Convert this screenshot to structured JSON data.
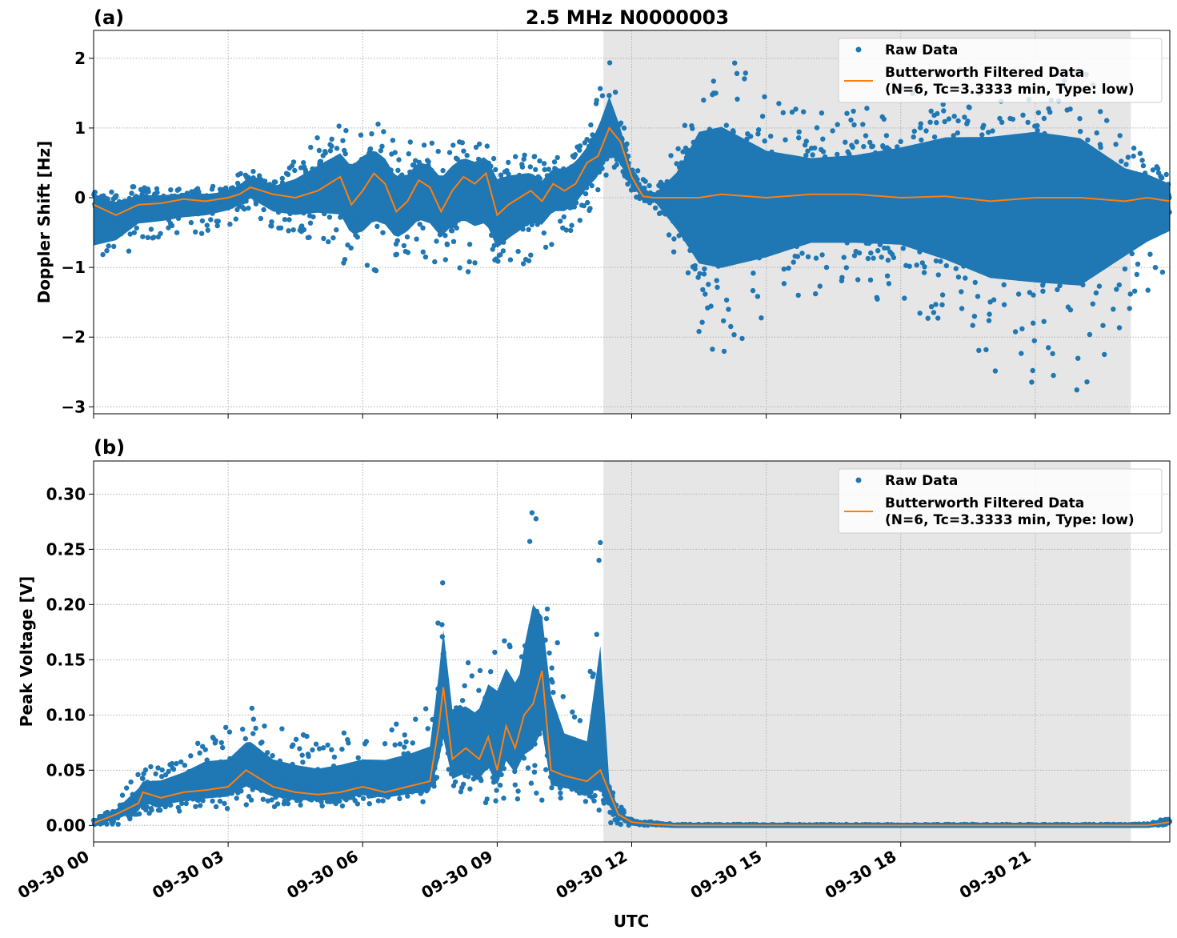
{
  "figure": {
    "title": "2.5 MHz N0000003",
    "xlabel": "UTC",
    "x_ticks": [
      "09-30 00",
      "09-30 03",
      "09-30 06",
      "09-30 09",
      "09-30 12",
      "09-30 15",
      "09-30 18",
      "09-30 21"
    ],
    "x_tick_hours": [
      0,
      3,
      6,
      9,
      12,
      15,
      18,
      21
    ],
    "x_range_hours": [
      0,
      24
    ],
    "shaded_interval_hours": [
      11.37,
      23.13
    ],
    "colors": {
      "raw": "#1f77b4",
      "filtered": "#ff7f0e",
      "shade": "#e6e6e6",
      "grid": "#b0b0b0"
    },
    "legend": {
      "raw_label": "Raw Data",
      "filtered_line1": "Butterworth Filtered Data",
      "filtered_line2": "(N=6, Tc=3.3333 min, Type: low)"
    }
  },
  "panels": {
    "a": {
      "label": "(a)",
      "ylabel": "Doppler Shift [Hz]",
      "ylim": [
        -3.1,
        2.4
      ],
      "y_ticks": [
        2,
        1,
        0,
        -1,
        -2,
        -3
      ],
      "y_tick_labels": [
        "2",
        "1",
        "0",
        "−1",
        "−2",
        "−3"
      ]
    },
    "b": {
      "label": "(b)",
      "ylabel": "Peak Voltage [V]",
      "ylim": [
        -0.015,
        0.33
      ],
      "y_ticks": [
        0.0,
        0.05,
        0.1,
        0.15,
        0.2,
        0.25,
        0.3
      ],
      "y_tick_labels": [
        "0.00",
        "0.05",
        "0.10",
        "0.15",
        "0.20",
        "0.25",
        "0.30"
      ]
    }
  },
  "chart_data": [
    {
      "type": "scatter",
      "panel": "a",
      "title": "2.5 MHz N0000003",
      "ylabel": "Doppler Shift [Hz]",
      "xlabel": "UTC",
      "ylim": [
        -3.1,
        2.4
      ],
      "grid": true,
      "legend_position": "top-right",
      "series": [
        {
          "name": "Butterworth Filtered Data",
          "type": "line",
          "x": [
            0,
            0.5,
            1,
            1.5,
            2,
            2.5,
            3,
            3.25,
            3.5,
            4,
            4.5,
            5,
            5.25,
            5.5,
            5.75,
            6,
            6.25,
            6.5,
            6.75,
            7,
            7.25,
            7.5,
            7.75,
            8,
            8.25,
            8.5,
            8.75,
            9,
            9.25,
            9.5,
            9.75,
            10,
            10.25,
            10.5,
            10.75,
            11,
            11.25,
            11.5,
            11.75,
            12,
            12.25,
            12.5,
            13,
            13.5,
            14,
            15,
            16,
            17,
            18,
            19,
            20,
            21,
            22,
            23,
            23.5,
            24
          ],
          "y": [
            -0.1,
            -0.25,
            -0.1,
            -0.08,
            -0.02,
            -0.05,
            0.0,
            0.05,
            0.15,
            0.05,
            0.0,
            0.1,
            0.2,
            0.3,
            -0.1,
            0.1,
            0.35,
            0.2,
            -0.2,
            -0.05,
            0.25,
            0.15,
            -0.2,
            0.1,
            0.3,
            0.2,
            0.35,
            -0.25,
            -0.1,
            0.0,
            0.1,
            -0.05,
            0.2,
            0.1,
            0.2,
            0.5,
            0.6,
            1.0,
            0.8,
            0.3,
            0.02,
            0.0,
            0.0,
            0.0,
            0.05,
            0.0,
            0.05,
            0.05,
            0.0,
            0.02,
            -0.05,
            0.0,
            0.0,
            -0.05,
            0.0,
            -0.05
          ]
        },
        {
          "name": "Raw Data",
          "type": "scatter",
          "envelope_x": [
            0,
            1,
            2,
            3,
            3.5,
            4,
            5,
            6,
            7,
            8,
            9,
            10,
            11,
            11.5,
            12,
            12.5,
            13,
            13.5,
            14,
            15,
            16,
            17,
            18,
            19,
            20,
            21,
            22,
            23,
            24
          ],
          "envelope_upper": [
            0.15,
            0.2,
            0.15,
            0.2,
            0.5,
            0.3,
            0.9,
            1.2,
            0.8,
            0.9,
            0.9,
            0.6,
            1.0,
            2.0,
            0.5,
            0.1,
            0.8,
            2.1,
            2.2,
            1.5,
            1.2,
            1.3,
            1.6,
            1.9,
            2.0,
            2.1,
            1.9,
            1.0,
            0.5
          ],
          "envelope_lower": [
            -1.4,
            -0.7,
            -0.6,
            -0.4,
            -0.2,
            -0.5,
            -0.6,
            -1.2,
            -1.0,
            -1.0,
            -1.3,
            -0.8,
            -0.3,
            0.2,
            0.0,
            -0.1,
            -1.0,
            -2.1,
            -2.3,
            -1.9,
            -1.5,
            -1.5,
            -1.5,
            -2.0,
            -2.5,
            -2.7,
            -2.8,
            -1.8,
            -1.0
          ]
        }
      ]
    },
    {
      "type": "scatter",
      "panel": "b",
      "ylabel": "Peak Voltage [V]",
      "xlabel": "UTC",
      "ylim": [
        -0.015,
        0.33
      ],
      "grid": true,
      "legend_position": "top-right",
      "series": [
        {
          "name": "Butterworth Filtered Data",
          "type": "line",
          "x": [
            0,
            0.5,
            1,
            1.1,
            1.5,
            2,
            2.5,
            3,
            3.4,
            4,
            4.5,
            5,
            5.5,
            6,
            6.5,
            7,
            7.5,
            7.7,
            7.8,
            8,
            8.3,
            8.6,
            8.8,
            9.0,
            9.2,
            9.4,
            9.6,
            9.8,
            10.0,
            10.2,
            10.5,
            11.0,
            11.3,
            11.5,
            11.7,
            12,
            12.5,
            13,
            15,
            18,
            21,
            23,
            23.5,
            24
          ],
          "y": [
            0.002,
            0.01,
            0.02,
            0.03,
            0.025,
            0.03,
            0.032,
            0.035,
            0.05,
            0.035,
            0.03,
            0.028,
            0.03,
            0.035,
            0.03,
            0.035,
            0.04,
            0.09,
            0.125,
            0.06,
            0.07,
            0.06,
            0.08,
            0.05,
            0.09,
            0.07,
            0.1,
            0.11,
            0.14,
            0.05,
            0.045,
            0.04,
            0.05,
            0.03,
            0.01,
            0.003,
            0.001,
            0.0,
            0.0,
            0.0,
            0.0,
            0.0,
            0.0,
            0.003
          ]
        },
        {
          "name": "Raw Data",
          "type": "scatter",
          "envelope_x": [
            0,
            0.5,
            1,
            1.5,
            2,
            2.5,
            3,
            3.5,
            4,
            5,
            6,
            7,
            7.5,
            7.8,
            8,
            8.5,
            9,
            9.5,
            9.8,
            10,
            10.5,
            11,
            11.3,
            11.5,
            11.7,
            12,
            13,
            23.1,
            23.5,
            24
          ],
          "envelope_upper": [
            0.005,
            0.02,
            0.05,
            0.06,
            0.07,
            0.09,
            0.09,
            0.11,
            0.09,
            0.08,
            0.09,
            0.1,
            0.11,
            0.24,
            0.16,
            0.15,
            0.21,
            0.2,
            0.31,
            0.25,
            0.13,
            0.12,
            0.3,
            0.05,
            0.02,
            0.005,
            0.001,
            0.001,
            0.002,
            0.008
          ],
          "envelope_lower": [
            0.0,
            0.0,
            0.005,
            0.01,
            0.012,
            0.015,
            0.015,
            0.018,
            0.015,
            0.015,
            0.018,
            0.02,
            0.02,
            0.022,
            0.02,
            0.02,
            0.02,
            0.02,
            0.02,
            0.02,
            0.02,
            0.02,
            0.01,
            0.002,
            0.0,
            0.0,
            0.0,
            0.0,
            0.0,
            0.0
          ]
        }
      ]
    }
  ]
}
